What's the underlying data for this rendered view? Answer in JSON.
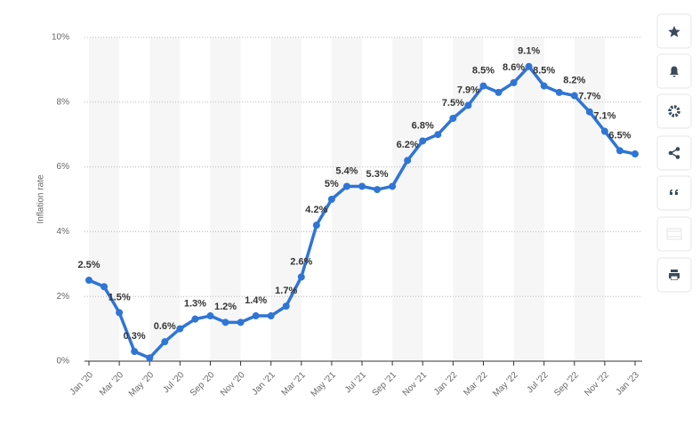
{
  "chart_data": {
    "type": "line",
    "y_label": "Inflation rate",
    "categories": [
      "Jan '20",
      null,
      "Mar '20",
      null,
      "May '20",
      null,
      "Jul '20",
      null,
      "Sep '20",
      null,
      "Nov '20",
      null,
      "Jan '21",
      null,
      "Mar '21",
      null,
      "May '21",
      null,
      "Jul '21",
      null,
      "Sep '21",
      null,
      "Nov '21",
      null,
      "Jan '22",
      null,
      "Mar '22",
      null,
      "May '22",
      null,
      "Jul '22",
      null,
      "Sep '22",
      null,
      "Nov '22",
      null,
      "Jan '23"
    ],
    "series": [
      {
        "color": "#2f75d6",
        "values": [
          2.5,
          2.3,
          1.5,
          0.3,
          0.1,
          0.6,
          1.0,
          1.3,
          1.4,
          1.2,
          1.2,
          1.4,
          1.4,
          1.7,
          2.6,
          4.2,
          5.0,
          5.4,
          5.4,
          5.3,
          5.4,
          6.2,
          6.8,
          7.0,
          7.5,
          7.9,
          8.5,
          8.3,
          8.6,
          9.1,
          8.5,
          8.3,
          8.2,
          7.7,
          7.1,
          6.5,
          6.4
        ],
        "value_labels": [
          "2.5%",
          null,
          "1.5%",
          "0.3%",
          null,
          "0.6%",
          null,
          "1.3%",
          null,
          "1.2%",
          null,
          "1.4%",
          null,
          "1.7%",
          "2.6%",
          "4.2%",
          "5%",
          "5.4%",
          null,
          "5.3%",
          null,
          "6.2%",
          "6.8%",
          null,
          "7.5%",
          "7.9%",
          "8.5%",
          null,
          "8.6%",
          "9.1%",
          "8.5%",
          null,
          "8.2%",
          "7.7%",
          "7.1%",
          "6.5%",
          null
        ]
      }
    ],
    "ylim": [
      0,
      10
    ],
    "yticks": [
      {
        "value": 0,
        "label": "0%"
      },
      {
        "value": 2,
        "label": "2%"
      },
      {
        "value": 4,
        "label": "4%"
      },
      {
        "value": 6,
        "label": "6%"
      },
      {
        "value": 8,
        "label": "8%"
      },
      {
        "value": 10,
        "label": "10%"
      }
    ],
    "grid": true
  }
}
